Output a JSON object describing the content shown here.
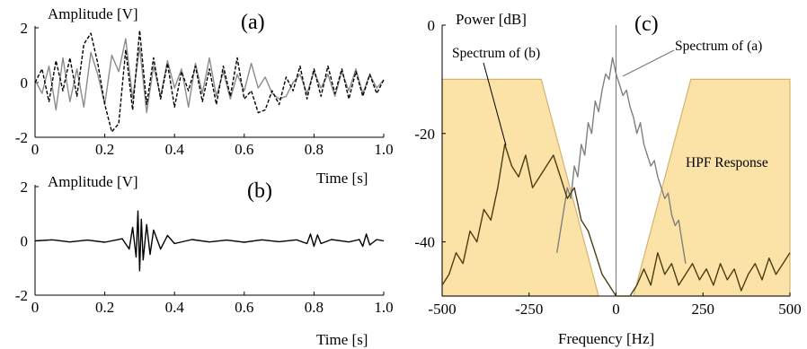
{
  "chart_data": [
    {
      "id": "a",
      "type": "line",
      "panel_label": "(a)",
      "ylabel": "Amplitude  [V]",
      "xlabel": "Time  [s]",
      "xlim": [
        0,
        1.0
      ],
      "ylim": [
        -2,
        2
      ],
      "x_ticks": [
        "0",
        "0.2",
        "0.4",
        "0.6",
        "0.8",
        "1.0"
      ],
      "y_ticks": [
        "2",
        "0",
        "-2"
      ],
      "grid": false,
      "series": [
        {
          "style": "solid",
          "color": "#8c8c8c",
          "x": [
            0,
            0.02,
            0.04,
            0.06,
            0.08,
            0.1,
            0.12,
            0.14,
            0.16,
            0.18,
            0.2,
            0.22,
            0.24,
            0.26,
            0.28,
            0.3,
            0.32,
            0.34,
            0.36,
            0.38,
            0.4,
            0.42,
            0.44,
            0.46,
            0.48,
            0.5,
            0.52,
            0.54,
            0.56,
            0.58,
            0.6,
            0.62,
            0.64,
            0.66,
            0.68,
            0.7,
            0.72,
            0.74,
            0.76,
            0.78,
            0.8,
            0.82,
            0.84,
            0.86,
            0.88,
            0.9,
            0.92,
            0.94,
            0.96,
            0.98,
            1.0
          ],
          "y": [
            0.1,
            -0.4,
            0.6,
            -1.0,
            0.9,
            -0.7,
            0.5,
            -0.9,
            1.1,
            0.3,
            -0.8,
            1.0,
            0.4,
            1.6,
            -0.6,
            1.3,
            -1.1,
            0.6,
            -0.5,
            0.8,
            -0.2,
            0.5,
            -0.9,
            0.7,
            -0.4,
            0.9,
            -0.5,
            0.4,
            -0.6,
            0.3,
            -0.3,
            0.7,
            -0.2,
            0.2,
            -0.4,
            -0.6,
            -0.5,
            0.0,
            0.3,
            -0.4,
            0.4,
            -0.2,
            0.3,
            -0.5,
            0.4,
            -0.3,
            0.5,
            -0.4,
            0.3,
            -0.2,
            0.1
          ]
        },
        {
          "style": "dashed",
          "color": "#000000",
          "x": [
            0,
            0.02,
            0.04,
            0.06,
            0.08,
            0.1,
            0.12,
            0.14,
            0.16,
            0.18,
            0.2,
            0.22,
            0.24,
            0.26,
            0.28,
            0.3,
            0.32,
            0.34,
            0.36,
            0.38,
            0.4,
            0.42,
            0.44,
            0.46,
            0.48,
            0.5,
            0.52,
            0.54,
            0.56,
            0.58,
            0.6,
            0.62,
            0.64,
            0.66,
            0.68,
            0.7,
            0.72,
            0.74,
            0.76,
            0.78,
            0.8,
            0.82,
            0.84,
            0.86,
            0.88,
            0.9,
            0.92,
            0.94,
            0.96,
            0.98,
            1.0
          ],
          "y": [
            0.0,
            0.5,
            -0.7,
            0.8,
            -0.3,
            0.9,
            -0.5,
            1.4,
            1.8,
            0.7,
            -0.8,
            -1.8,
            -1.5,
            1.2,
            -1.0,
            1.9,
            -0.8,
            0.9,
            -0.6,
            0.7,
            -0.9,
            0.4,
            -0.3,
            0.6,
            -0.7,
            0.5,
            -0.8,
            0.6,
            -0.5,
            0.9,
            -0.6,
            -0.3,
            -1.1,
            -1.0,
            -0.3,
            -0.8,
            0.2,
            -0.3,
            0.6,
            -0.6,
            0.5,
            -0.5,
            0.6,
            -0.4,
            0.5,
            -0.6,
            0.4,
            -0.5,
            0.3,
            -0.4,
            0.1
          ]
        }
      ]
    },
    {
      "id": "b",
      "type": "line",
      "panel_label": "(b)",
      "ylabel": "Amplitude  [V]",
      "xlabel": "Time  [s]",
      "xlim": [
        0,
        1.0
      ],
      "ylim": [
        -2,
        2
      ],
      "x_ticks": [
        "0",
        "0.2",
        "0.4",
        "0.6",
        "0.8",
        "1.0"
      ],
      "y_ticks": [
        "2",
        "0",
        "-2"
      ],
      "grid": false,
      "series": [
        {
          "style": "solid",
          "color": "#000000",
          "x": [
            0,
            0.05,
            0.1,
            0.15,
            0.2,
            0.25,
            0.27,
            0.28,
            0.29,
            0.295,
            0.3,
            0.305,
            0.31,
            0.32,
            0.33,
            0.34,
            0.36,
            0.38,
            0.4,
            0.45,
            0.5,
            0.55,
            0.6,
            0.65,
            0.7,
            0.75,
            0.78,
            0.79,
            0.8,
            0.81,
            0.82,
            0.85,
            0.9,
            0.93,
            0.94,
            0.95,
            0.96,
            0.98,
            1.0
          ],
          "y": [
            0.0,
            0.04,
            -0.04,
            0.03,
            -0.05,
            0.08,
            -0.3,
            0.5,
            -0.6,
            1.1,
            -1.1,
            0.8,
            -0.7,
            0.6,
            -0.5,
            0.4,
            -0.3,
            0.2,
            -0.1,
            0.05,
            -0.04,
            0.03,
            -0.05,
            0.04,
            -0.03,
            0.04,
            -0.1,
            0.25,
            -0.2,
            0.22,
            -0.1,
            0.05,
            -0.04,
            0.05,
            -0.2,
            0.25,
            -0.15,
            0.05,
            0.0
          ]
        }
      ]
    },
    {
      "id": "c",
      "type": "line",
      "panel_label": "(c)",
      "ylabel": "Power  [dB]",
      "xlabel": "Frequency  [Hz]",
      "xlim": [
        -500,
        500
      ],
      "ylim": [
        -50,
        0
      ],
      "x_ticks": [
        "-500",
        "-250",
        "0",
        "250",
        "500"
      ],
      "y_ticks": [
        "0",
        "-20",
        "-40"
      ],
      "grid": false,
      "filter_band": {
        "label": "HPF Response",
        "color": "#fbe2a6",
        "edge_color": "#d3b36f",
        "level_db": -10,
        "low_stop_edge": [
          -215,
          -50
        ],
        "high_pass_edge": [
          50,
          215
        ]
      },
      "annotations": [
        "Spectrum of (b)",
        "Spectrum of (a)"
      ],
      "series": [
        {
          "name": "Spectrum of (a)",
          "style": "solid",
          "color": "#808080",
          "x": [
            -170,
            -160,
            -150,
            -140,
            -130,
            -120,
            -110,
            -100,
            -90,
            -80,
            -70,
            -60,
            -50,
            -40,
            -30,
            -20,
            -10,
            0,
            10,
            20,
            30,
            40,
            50,
            60,
            70,
            80,
            90,
            100,
            110,
            120,
            130,
            140,
            150,
            160,
            170,
            180,
            190,
            200
          ],
          "y": [
            -42,
            -38,
            -34,
            -30,
            -32,
            -26,
            -28,
            -22,
            -24,
            -18,
            -20,
            -14,
            -16,
            -12,
            -9,
            -10,
            -6,
            -9,
            -11,
            -13,
            -12,
            -15,
            -17,
            -20,
            -18,
            -22,
            -24,
            -26,
            -25,
            -28,
            -30,
            -32,
            -31,
            -35,
            -37,
            -36,
            -40,
            -44
          ]
        },
        {
          "name": "Spectrum of (b)",
          "style": "solid",
          "color": "#4a3e12",
          "x": [
            -500,
            -480,
            -460,
            -440,
            -420,
            -400,
            -380,
            -360,
            -340,
            -320,
            -300,
            -280,
            -260,
            -240,
            -220,
            -200,
            -180,
            -160,
            -140,
            -120,
            -100,
            -80,
            -60,
            -40,
            -20,
            0,
            20,
            40,
            60,
            80,
            100,
            120,
            140,
            160,
            180,
            200,
            220,
            240,
            260,
            280,
            300,
            320,
            340,
            360,
            380,
            400,
            420,
            440,
            460,
            480,
            500
          ],
          "y": [
            -48,
            -46,
            -42,
            -44,
            -38,
            -40,
            -34,
            -36,
            -30,
            -22,
            -26,
            -28,
            -24,
            -30,
            -28,
            -26,
            -24,
            -28,
            -32,
            -30,
            -36,
            -38,
            -42,
            -46,
            -48,
            -50,
            -50,
            -50,
            -48,
            -45,
            -48,
            -42,
            -46,
            -44,
            -48,
            -46,
            -44,
            -47,
            -45,
            -48,
            -44,
            -47,
            -45,
            -49,
            -46,
            -44,
            -47,
            -43,
            -46,
            -44,
            -42
          ]
        }
      ]
    }
  ]
}
